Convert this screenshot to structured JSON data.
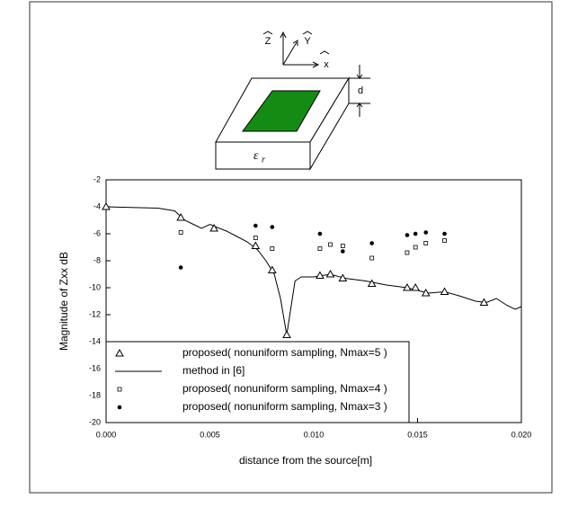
{
  "diagram": {
    "z": "Z",
    "y": "Y",
    "x": "x",
    "d": "d",
    "eps": "ε",
    "eps_sub": "r"
  },
  "chart_data": {
    "type": "scatter",
    "ylabel": "Magnitude of Zxx dB",
    "xlabel": "distance from the source[m]",
    "xlim": [
      0,
      0.02
    ],
    "xticks": [
      {
        "value": 0,
        "label": "0.000"
      },
      {
        "value": 0.005,
        "label": "0.005"
      },
      {
        "value": 0.01,
        "label": "0.010"
      },
      {
        "value": 0.015,
        "label": "0.015"
      },
      {
        "value": 0.02,
        "label": "0.020"
      }
    ],
    "ylim": [
      -20,
      -2
    ],
    "yticks": [
      -20,
      -18,
      -16,
      -14,
      -12,
      -10,
      -8,
      -6,
      -4,
      -2
    ],
    "legend": "lower left",
    "series": [
      {
        "name": "proposed( nonuniform sampling, Nmax=5 )",
        "marker": "triangle",
        "color": "#000000",
        "x": [
          0,
          0.0036,
          0.0052,
          0.0072,
          0.008,
          0.0087,
          0.0103,
          0.0108,
          0.0114,
          0.0128,
          0.0145,
          0.0149,
          0.0154,
          0.0163,
          0.0182
        ],
        "values": [
          -4.0,
          -4.8,
          -5.6,
          -6.9,
          -8.7,
          -13.5,
          -9.1,
          -9.0,
          -9.3,
          -9.7,
          -10.0,
          -10.0,
          -10.4,
          -10.3,
          -11.1
        ]
      },
      {
        "name": "method in [6]",
        "marker": "line",
        "color": "#000000",
        "x": [
          0,
          0.0025,
          0.0033,
          0.0038,
          0.0042,
          0.0046,
          0.005,
          0.0053,
          0.0058,
          0.0063,
          0.0068,
          0.0073,
          0.0077,
          0.0081,
          0.0084,
          0.0087,
          0.0089,
          0.0091,
          0.0094,
          0.01,
          0.0108,
          0.0115,
          0.0125,
          0.0135,
          0.0145,
          0.0155,
          0.0163,
          0.017,
          0.0178,
          0.0183,
          0.0188,
          0.0193,
          0.0197,
          0.02
        ],
        "values": [
          -4.0,
          -4.1,
          -4.3,
          -5.0,
          -5.3,
          -5.6,
          -5.3,
          -5.5,
          -5.8,
          -6.2,
          -6.6,
          -7.2,
          -8.0,
          -9.0,
          -10.8,
          -13.5,
          -11.5,
          -9.5,
          -9.2,
          -9.2,
          -9.0,
          -9.3,
          -9.5,
          -9.8,
          -10.0,
          -10.4,
          -10.3,
          -10.6,
          -11.0,
          -11.1,
          -10.8,
          -11.3,
          -11.6,
          -11.4
        ]
      },
      {
        "name": "proposed( nonuniform sampling, Nmax=4 )",
        "marker": "square",
        "color": "#000000",
        "x": [
          0.0036,
          0.0072,
          0.008,
          0.0103,
          0.0108,
          0.0114,
          0.0128,
          0.0145,
          0.0149,
          0.0154,
          0.0163
        ],
        "values": [
          -5.9,
          -6.3,
          -7.1,
          -7.1,
          -6.8,
          -6.9,
          -7.8,
          -7.4,
          -7.0,
          -6.7,
          -6.5
        ]
      },
      {
        "name": "proposed( nonuniform sampling, Nmax=3 )",
        "marker": "dot",
        "color": "#000000",
        "x": [
          0,
          0.0036,
          0.0072,
          0.008,
          0.0103,
          0.0114,
          0.0128,
          0.0145,
          0.0149,
          0.0154,
          0.0163,
          0.0182
        ],
        "values": [
          -4.0,
          -8.5,
          -5.4,
          -5.5,
          -6.0,
          -7.3,
          -6.7,
          -6.1,
          -6.0,
          -5.9,
          -6.0,
          -11.1
        ]
      }
    ]
  }
}
